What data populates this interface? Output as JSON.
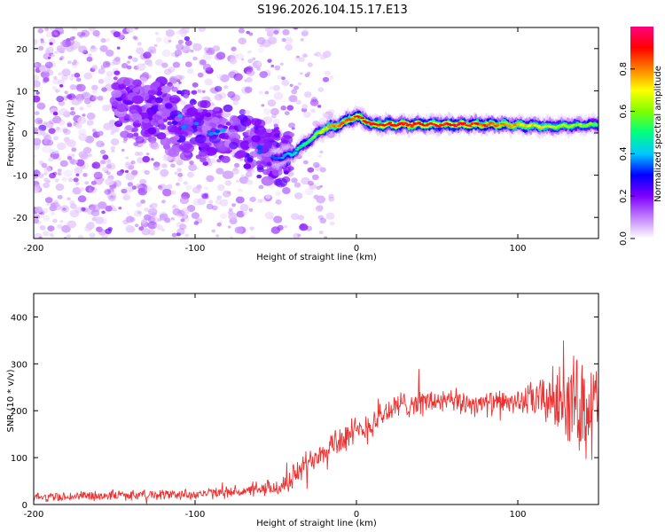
{
  "title": "S196.2026.104.15.17.E13",
  "chart_data": [
    {
      "type": "heatmap",
      "xlabel": "Height of straight line (km)",
      "ylabel": "Frequency (Hz)",
      "xlim": [
        -200,
        150
      ],
      "ylim": [
        -25,
        25
      ],
      "x_ticks": [
        -200,
        -100,
        0,
        100
      ],
      "y_ticks": [
        -20,
        -10,
        0,
        10,
        20
      ],
      "colorbar": {
        "label": "Normalized spectral amplitude",
        "range": [
          0,
          1
        ],
        "ticks": [
          0.0,
          0.2,
          0.4,
          0.6,
          0.8
        ],
        "colormap": [
          "#ffffff",
          "#c080ff",
          "#7f00ff",
          "#0000ff",
          "#00c8ff",
          "#00ff7f",
          "#7fff00",
          "#ffff00",
          "#ff8000",
          "#ff0000",
          "#ff0080"
        ]
      },
      "ridge": {
        "description_points_x": [
          -50,
          -40,
          -30,
          -20,
          -10,
          0,
          10,
          30,
          60,
          90,
          120,
          150
        ],
        "frequency_hz": [
          -6,
          -5,
          -2,
          1,
          2,
          4,
          2,
          2,
          2,
          2,
          1.5,
          2
        ],
        "peak_amplitude": [
          0.35,
          0.45,
          0.55,
          0.75,
          0.85,
          0.9,
          0.95,
          0.95,
          0.95,
          0.85,
          0.7,
          0.6
        ]
      },
      "scatter_region_x": [
        -200,
        -40
      ],
      "scatter_diagonal": {
        "x": [
          -150,
          -40
        ],
        "frequency_hz": [
          8,
          -6
        ]
      }
    },
    {
      "type": "line",
      "xlabel": "Height of straight line (km)",
      "ylabel": "SNR (10 * v/v)",
      "xlim": [
        -200,
        150
      ],
      "ylim": [
        0,
        450
      ],
      "x_ticks": [
        -200,
        -100,
        0,
        100
      ],
      "y_ticks": [
        0,
        100,
        200,
        300,
        400
      ],
      "color": "#ee3030",
      "trend_x": [
        -200,
        -150,
        -100,
        -60,
        -45,
        -30,
        -20,
        -10,
        0,
        10,
        20,
        30,
        50,
        80,
        100,
        120,
        140,
        150
      ],
      "trend_y": [
        15,
        20,
        22,
        30,
        40,
        90,
        120,
        140,
        150,
        175,
        200,
        215,
        220,
        215,
        220,
        225,
        215,
        200
      ],
      "noise_x": [
        -200,
        -60,
        -45,
        0,
        30,
        100,
        115,
        135,
        150
      ],
      "noise_amp": [
        12,
        15,
        30,
        45,
        35,
        30,
        60,
        120,
        140
      ]
    }
  ]
}
